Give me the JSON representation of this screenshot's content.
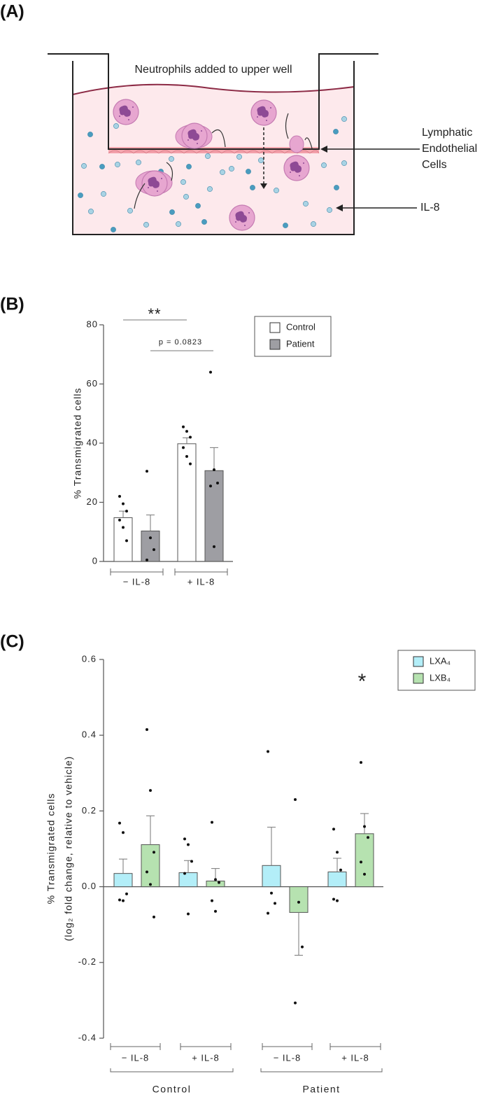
{
  "panel_labels": [
    "(A)",
    "(B)",
    "(C)"
  ],
  "diagram": {
    "top_label": "Neutrophils added to upper well",
    "cell_label": [
      "Lymphatic",
      "Endothelial",
      "Cells"
    ],
    "il8_label": "IL-8"
  },
  "chart_data": [
    {
      "type": "bar",
      "y_label": "% Transmigrated cells",
      "categories": [
        "− IL-8",
        "+ IL-8"
      ],
      "series": [
        {
          "name": "Control",
          "color": "#ffffff",
          "values": [
            14.8,
            39.8
          ],
          "errors": [
            2.2,
            2.0
          ],
          "points": [
            [
              22,
              19.5,
              17,
              14,
              11.5,
              7
            ],
            [
              45.5,
              44,
              42,
              38.5,
              35.5,
              33
            ]
          ]
        },
        {
          "name": "Patient",
          "color": "#9e9ea3",
          "values": [
            10.3,
            30.7
          ],
          "errors": [
            5.4,
            7.8
          ],
          "points": [
            [
              30.5,
              8,
              4,
              0.5
            ],
            [
              64,
              31,
              26.5,
              25.5,
              5
            ]
          ]
        }
      ],
      "annotations": [
        "**",
        "p = 0.0823"
      ],
      "ylim": [
        0,
        80
      ],
      "yticks": [
        0,
        20,
        40,
        60,
        80
      ]
    },
    {
      "type": "bar",
      "y_label": [
        "% Transmigrated cells",
        "(log₂ fold change, relative to vehicle)"
      ],
      "categories": [
        "− IL-8",
        "+ IL-8",
        "− IL-8",
        "+ IL-8"
      ],
      "groups": [
        "Control",
        "Patient"
      ],
      "series": [
        {
          "name": "LXA₄",
          "color": "#b3eef8",
          "values": [
            0.035,
            0.037,
            0.056,
            0.039
          ],
          "errors": [
            0.038,
            0.032,
            0.101,
            0.036
          ],
          "points": [
            [
              0.168,
              0.143,
              -0.019,
              -0.035,
              -0.037
            ],
            [
              0.126,
              0.111,
              0.067,
              0.035,
              -0.072
            ],
            [
              0.357,
              -0.017,
              -0.044,
              -0.07
            ],
            [
              0.152,
              0.091,
              0.044,
              -0.033,
              -0.037
            ]
          ]
        },
        {
          "name": "LXB₄",
          "color": "#b6e2b0",
          "values": [
            0.111,
            0.015,
            -0.068,
            0.14
          ],
          "errors": [
            0.076,
            0.033,
            0.113,
            0.053
          ],
          "points": [
            [
              0.415,
              0.254,
              0.091,
              0.039,
              0.006,
              -0.08
            ],
            [
              0.17,
              0.019,
              0.011,
              -0.037,
              -0.065
            ],
            [
              0.23,
              -0.041,
              -0.159,
              -0.307
            ],
            [
              0.328,
              0.159,
              0.13,
              0.065,
              0.033
            ]
          ]
        }
      ],
      "annotations": [
        "*"
      ],
      "ylim": [
        -0.4,
        0.6
      ],
      "yticks": [
        -0.4,
        -0.2,
        {
          "value": 0,
          "label": "0.0"
        },
        0.2,
        0.4,
        0.6
      ]
    }
  ]
}
